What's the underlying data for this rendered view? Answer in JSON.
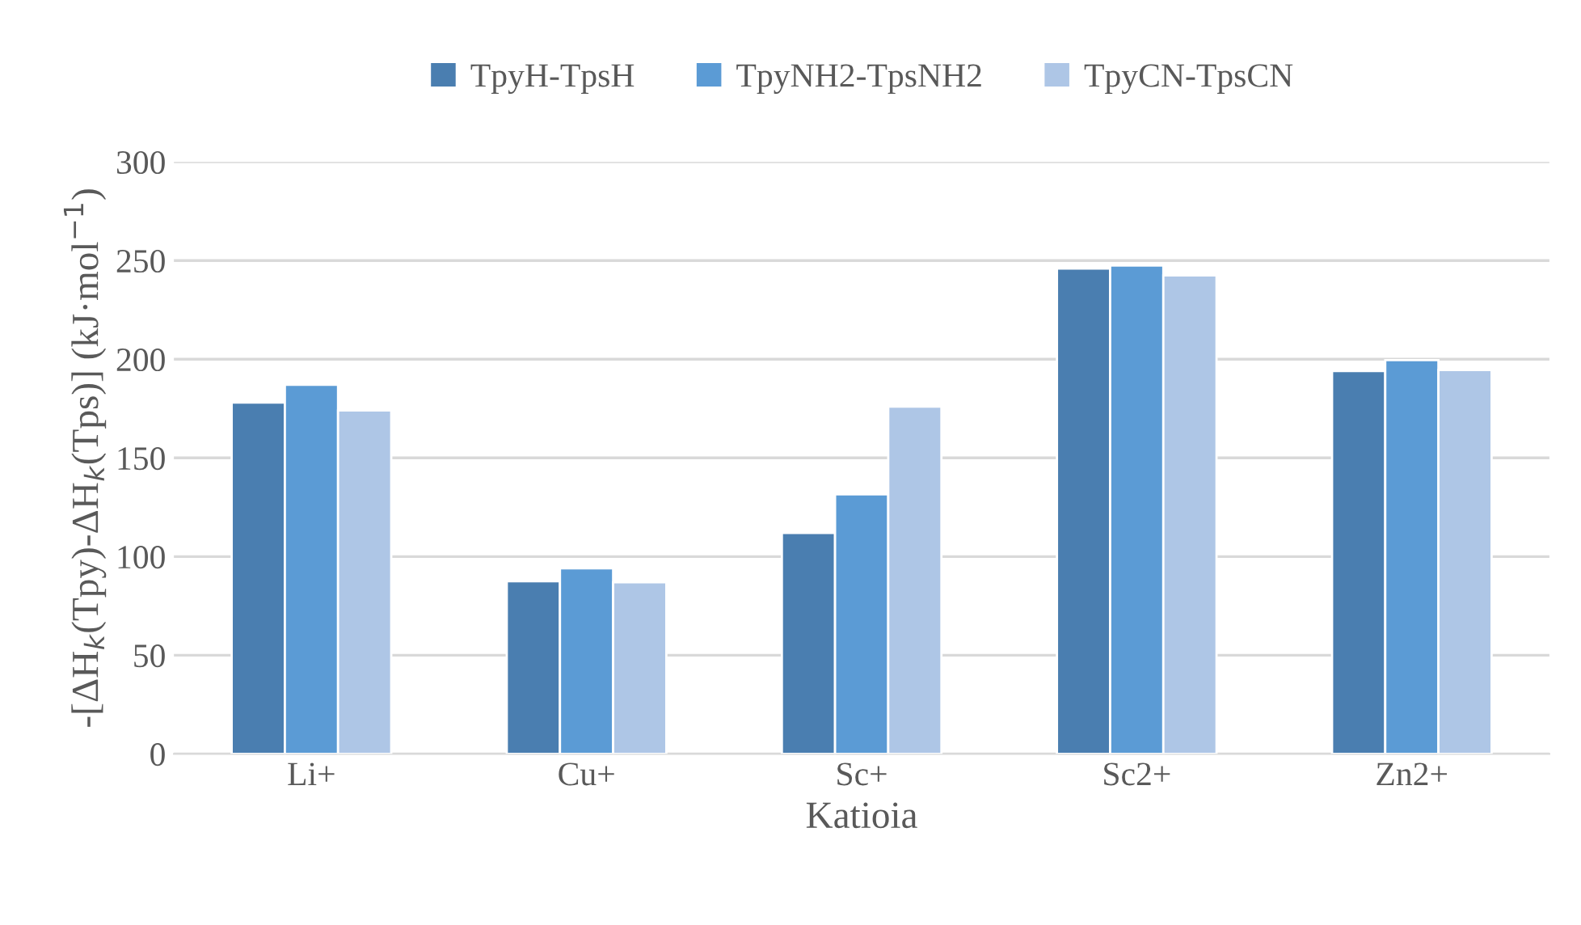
{
  "chart_data": {
    "type": "bar",
    "xlabel": "Katioia",
    "ylabel": "-[ΔH$_{k}$(Tpy)-ΔH$_{k}$(Tps)] (kJ·mol$^{−1}$)",
    "categories": [
      "Li+",
      "Cu+",
      "Sc+",
      "Sc2+",
      "Zn2+"
    ],
    "series": [
      {
        "name": "TpyH-TpsH",
        "color": "#4a7eb0",
        "values": [
          178,
          87.5,
          112,
          246,
          194
        ]
      },
      {
        "name": "TpyNH2-TpsNH2",
        "color": "#5b9bd5",
        "values": [
          187,
          94,
          131.5,
          247.5,
          199.5
        ]
      },
      {
        "name": "TpyCN-TpsCN",
        "color": "#aec6e6",
        "values": [
          174,
          87,
          176,
          242.5,
          194.5
        ]
      }
    ],
    "ylim": [
      0,
      300
    ],
    "yticks": [
      0,
      50,
      100,
      150,
      200,
      250,
      300
    ],
    "grid": "y",
    "legend": "top"
  }
}
